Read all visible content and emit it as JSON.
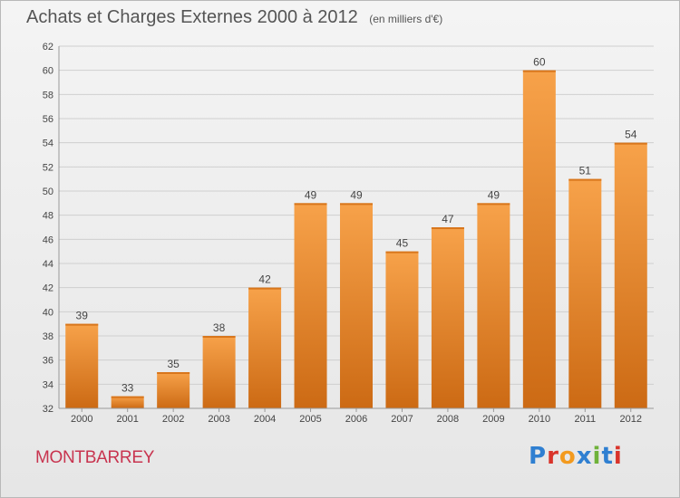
{
  "header": {
    "title": "Achats et Charges Externes 2000 à 2012",
    "unit_note": "(en milliers d'€)"
  },
  "footer": {
    "commune": "MONTBARREY",
    "brand": "Proxiti",
    "brand_letter_colors": [
      "#2f7fd1",
      "#d9342b",
      "#f39a1e",
      "#2f7fd1",
      "#6fb23a",
      "#2f7fd1",
      "#d9342b"
    ]
  },
  "chart_data": {
    "type": "bar",
    "title": "Achats et Charges Externes 2000 à 2012",
    "subtitle": "(en milliers d'€)",
    "categories": [
      "2000",
      "2001",
      "2002",
      "2003",
      "2004",
      "2005",
      "2006",
      "2007",
      "2008",
      "2009",
      "2010",
      "2011",
      "2012"
    ],
    "values": [
      39,
      33,
      35,
      38,
      42,
      49,
      49,
      45,
      47,
      49,
      60,
      51,
      54
    ],
    "data_labels": [
      "39",
      "33",
      "35",
      "38",
      "42",
      "49",
      "49",
      "45",
      "47",
      "49",
      "60",
      "51",
      "54"
    ],
    "ylim": [
      32,
      62
    ],
    "yticks": [
      "32",
      "34",
      "36",
      "38",
      "40",
      "42",
      "44",
      "46",
      "48",
      "50",
      "52",
      "54",
      "56",
      "58",
      "60",
      "62"
    ],
    "grid": true,
    "bar_color_top": "#f7a24a",
    "bar_color_bottom": "#cc6a14",
    "xlabel": "",
    "ylabel": ""
  }
}
